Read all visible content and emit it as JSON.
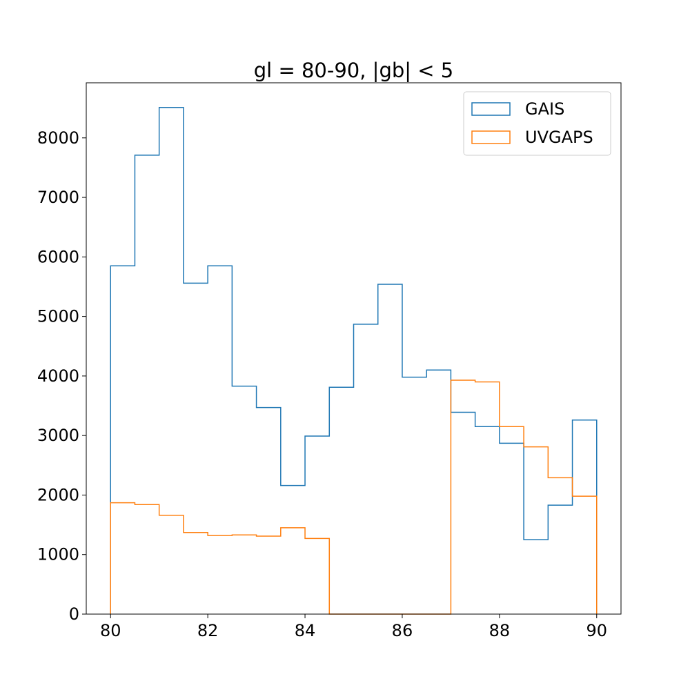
{
  "chart_data": {
    "type": "histogram",
    "title": "gl = 80-90, |gb| < 5",
    "xlabel": "",
    "ylabel": "",
    "xlim": [
      79.5,
      90.5
    ],
    "ylim": [
      0,
      8925
    ],
    "xticks": [
      "80",
      "82",
      "84",
      "86",
      "88",
      "90"
    ],
    "yticks": [
      "0",
      "1000",
      "2000",
      "3000",
      "4000",
      "5000",
      "6000",
      "7000",
      "8000"
    ],
    "bin_edges": [
      80.0,
      80.5,
      81.0,
      81.5,
      82.0,
      82.5,
      83.0,
      83.5,
      84.0,
      84.5,
      85.0,
      85.5,
      86.0,
      86.5,
      87.0,
      87.5,
      88.0,
      88.5,
      89.0,
      89.5,
      90.0
    ],
    "histtype": "step",
    "grid": false,
    "legend_position": "upper right",
    "series": [
      {
        "name": "GAIS",
        "color": "#1f77b4",
        "values": [
          5850,
          7710,
          8510,
          5560,
          5850,
          3830,
          3470,
          2160,
          2990,
          3810,
          4870,
          5540,
          3980,
          4100,
          3390,
          3150,
          2870,
          1250,
          1830,
          3260
        ]
      },
      {
        "name": "UVGAPS",
        "color": "#ff7f0e",
        "values": [
          1870,
          1840,
          1660,
          1370,
          1320,
          1330,
          1310,
          1450,
          1270,
          0,
          0,
          0,
          0,
          0,
          3930,
          3900,
          3150,
          2810,
          2290,
          1980
        ]
      }
    ]
  }
}
